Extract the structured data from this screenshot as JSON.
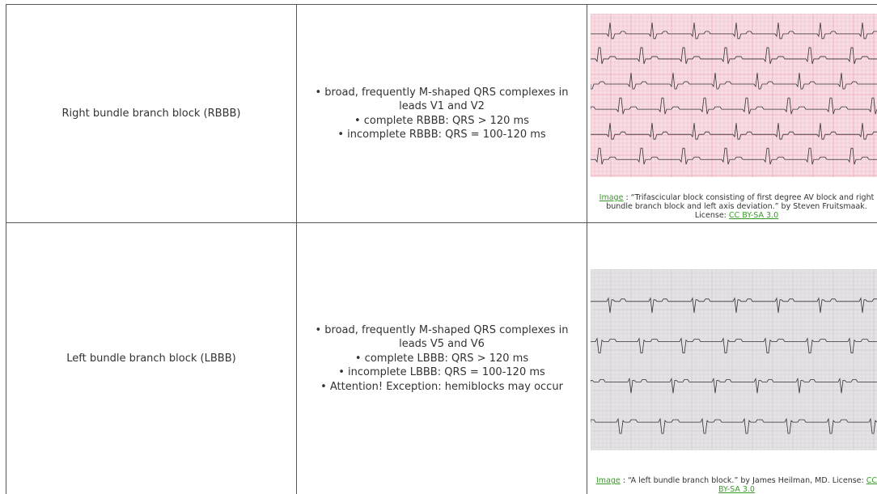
{
  "table": {
    "rows": [
      {
        "condition": "Right bundle branch block (RBBB)",
        "features": [
          "• broad, frequently M-shaped QRS complexes in leads V1 and V2",
          "• complete RBBB: QRS > 120 ms",
          "• incomplete RBBB: QRS = 100-120 ms"
        ],
        "caption": {
          "link": "Image",
          "text": ": “Trifascicular block consisting of first degree AV block and right bundle branch block and left axis deviation.” by Steven Fruitsmaak. License:",
          "license": "CC BY-SA 3.0"
        }
      },
      {
        "condition": "Left bundle branch block (LBBB)",
        "features": [
          "• broad, frequently M-shaped QRS complexes in leads V5 and V6",
          "• complete LBBB: QRS > 120 ms",
          "• incomplete LBBB: QRS = 100-120 ms",
          "• Attention! Exception: hemiblocks may occur"
        ],
        "caption": {
          "link": "Image",
          "text": ": “A left bundle branch block.” by James Heilman, MD. License:",
          "license": "CC BY-SA 3.0"
        }
      }
    ]
  }
}
